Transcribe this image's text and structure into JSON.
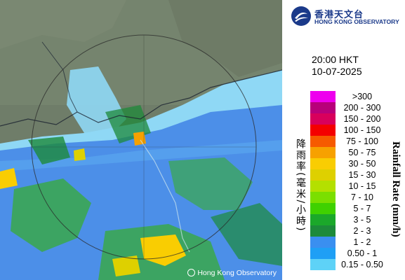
{
  "header": {
    "org_name_cn": "香港天文台",
    "org_name_en": "HONG KONG OBSERVATORY"
  },
  "timestamp": {
    "time": "20:00 HKT",
    "date": "10-07-2025"
  },
  "legend": {
    "title_en": "Rainfall Rate (mm/h)",
    "title_cn": "降雨率(毫米/小時)",
    "items": [
      {
        "label": ">300",
        "color": "#ee00ee"
      },
      {
        "label": "200 - 300",
        "color": "#b8007a"
      },
      {
        "label": "150 - 200",
        "color": "#d8005c"
      },
      {
        "label": "100 - 150",
        "color": "#f40000"
      },
      {
        "label": "75 - 100",
        "color": "#f65a00"
      },
      {
        "label": "50 - 75",
        "color": "#f7a100"
      },
      {
        "label": "30 - 50",
        "color": "#f9cd02"
      },
      {
        "label": "15 - 30",
        "color": "#ded000"
      },
      {
        "label": "10 - 15",
        "color": "#b4e000"
      },
      {
        "label": "7 - 10",
        "color": "#7bdf00"
      },
      {
        "label": "5 - 7",
        "color": "#3fd100"
      },
      {
        "label": "3 - 5",
        "color": "#1ba82a"
      },
      {
        "label": "2 - 3",
        "color": "#1d8a3a"
      },
      {
        "label": "1 - 2",
        "color": "#3a8ff0"
      },
      {
        "label": "0.50 - 1",
        "color": "#1f9ff5"
      },
      {
        "label": "0.15 - 0.50",
        "color": "#5ed2f7"
      }
    ]
  },
  "map": {
    "credit": "Hong Kong Observatory",
    "land_color": "#6a7a66",
    "rain_blue": "#4c8fe8",
    "rain_cyan": "#8fd8f5",
    "rain_green": "#3aa84a"
  }
}
